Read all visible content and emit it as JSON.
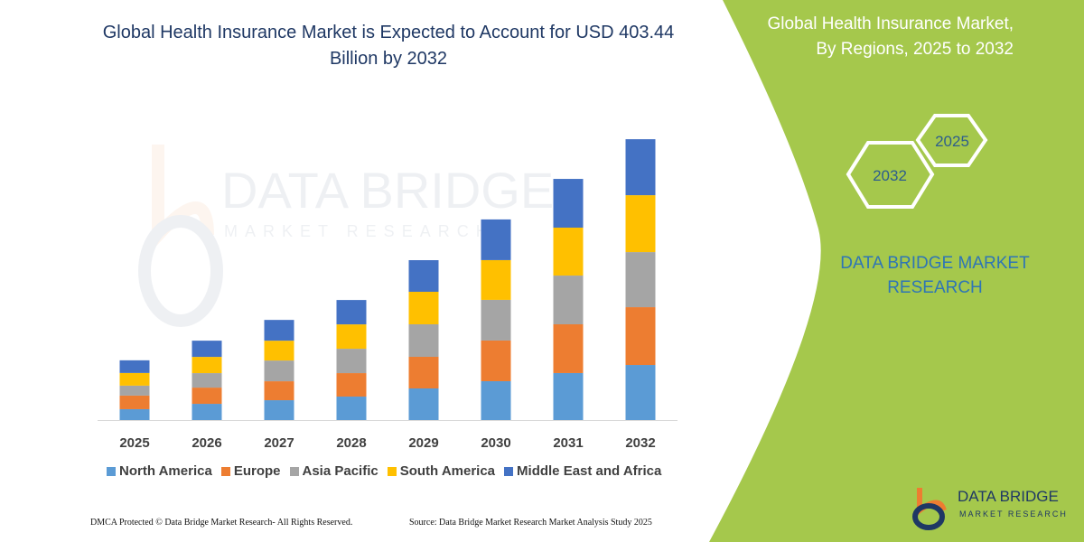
{
  "title": "Global Health Insurance Market is Expected to Account for USD 403.44 Billion by 2032",
  "side_title_line1": "Global Health Insurance Market,",
  "side_title_line2": "By Regions, 2025 to 2032",
  "hexagons": [
    "2025",
    "2032"
  ],
  "brand_line1": "DATA BRIDGE MARKET",
  "brand_line2": "RESEARCH",
  "logo": {
    "name": "DATA BRIDGE",
    "sub": "MARKET RESEARCH"
  },
  "watermark": "DATA BRIDGE MARKET RESEARCH",
  "footer_left": "DMCA Protected © Data Bridge Market Research- All Rights Reserved.",
  "footer_right": "Source: Data Bridge Market Research Market Analysis Study 2025",
  "colors": {
    "panel": "#a5c84c",
    "title": "#1f3864"
  },
  "chart_data": {
    "type": "bar",
    "stacked": true,
    "title": "Global Health Insurance Market is Expected to Account for USD 403.44 Billion by 2032",
    "xlabel": "",
    "ylabel": "",
    "categories": [
      "2025",
      "2026",
      "2027",
      "2028",
      "2029",
      "2030",
      "2031",
      "2032"
    ],
    "legend_position": "bottom",
    "grid": false,
    "y_axis_shown": false,
    "series": [
      {
        "name": "North America",
        "color": "#5b9bd5",
        "values": [
          15.6,
          23.3,
          28.5,
          33.7,
          45.4,
          55.8,
          67.5,
          79.1
        ]
      },
      {
        "name": "Europe",
        "color": "#ed7d31",
        "values": [
          19.5,
          23.3,
          27.2,
          33.7,
          45.4,
          58.4,
          70.0,
          83.0
        ]
      },
      {
        "name": "Asia Pacific",
        "color": "#a5a5a5",
        "values": [
          14.3,
          20.8,
          29.8,
          35.0,
          46.7,
          58.4,
          70.0,
          79.1
        ]
      },
      {
        "name": "South America",
        "color": "#ffc000",
        "values": [
          18.2,
          23.3,
          28.5,
          35.0,
          46.7,
          57.1,
          68.8,
          81.7
        ]
      },
      {
        "name": "Middle East and Africa",
        "color": "#4472c4",
        "values": [
          18.2,
          23.3,
          29.8,
          35.0,
          45.4,
          58.4,
          70.0,
          80.4
        ]
      }
    ]
  }
}
